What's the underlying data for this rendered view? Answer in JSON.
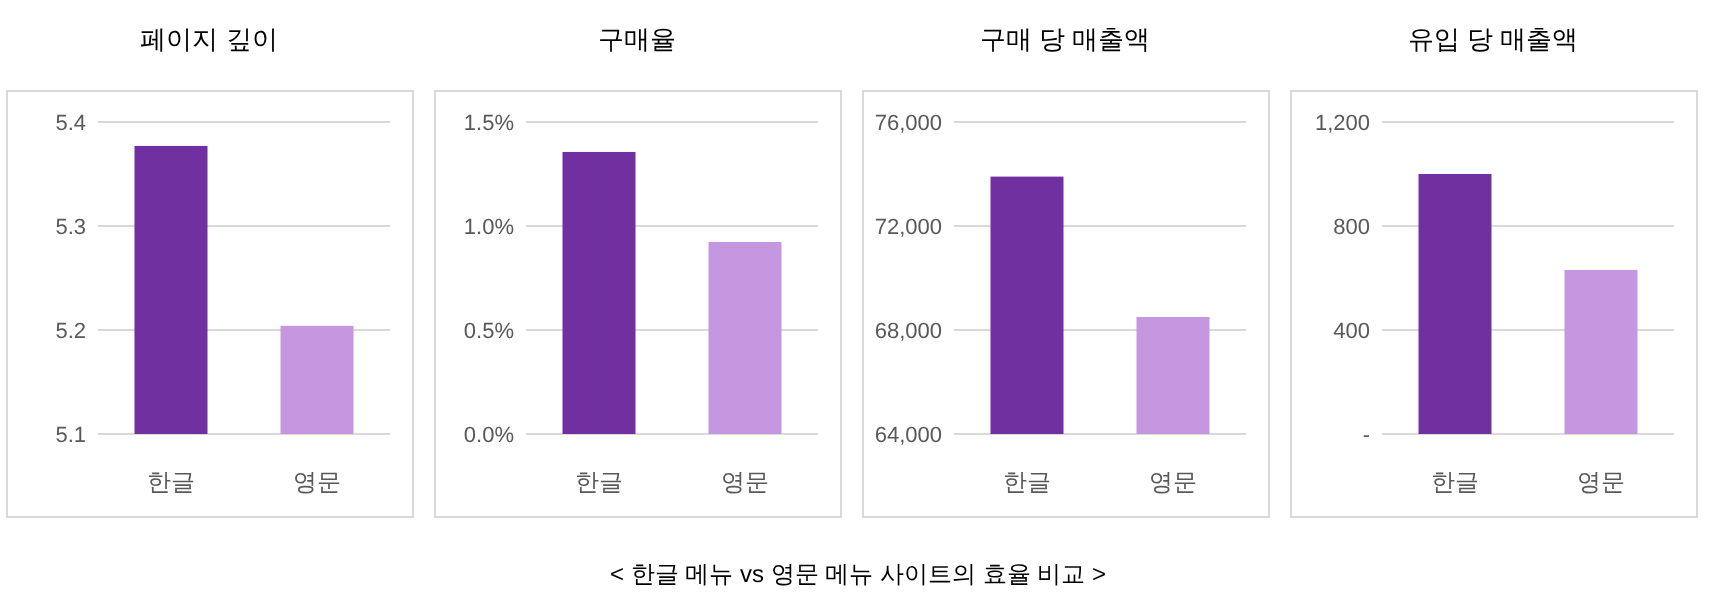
{
  "chart_data": [
    {
      "type": "bar",
      "title": "페이지 깊이",
      "categories": [
        "한글",
        "영문"
      ],
      "values": [
        5.377,
        5.204
      ],
      "colors": [
        "#7030a0",
        "#c497e0"
      ],
      "ylim": [
        5.1,
        5.4
      ],
      "yticks": [
        5.1,
        5.2,
        5.3,
        5.4
      ],
      "grid": "y",
      "annotations": [
        "< 한글 메뉴 vs 영문 메뉴 사이트의 효율 비교 >"
      ]
    },
    {
      "type": "bar",
      "title": "구매율",
      "categories": [
        "한글",
        "영문"
      ],
      "values": [
        1.356,
        0.923
      ],
      "colors": [
        "#7030a0",
        "#c497e0"
      ],
      "ylim": [
        0,
        1.5
      ],
      "yticks": [
        {
          "value": 0,
          "label": "0.0%"
        },
        {
          "value": 0.5,
          "label": "0.5%"
        },
        {
          "value": 1.0,
          "label": "1.0%"
        },
        {
          "value": 1.5,
          "label": "1.5%"
        }
      ],
      "grid": "y"
    },
    {
      "type": "bar",
      "title": "구매 당 매출액",
      "categories": [
        "한글",
        "영문"
      ],
      "values": [
        73900,
        68500
      ],
      "colors": [
        "#7030a0",
        "#c497e0"
      ],
      "ylim": [
        64000,
        76000
      ],
      "yticks": [
        {
          "value": 64000,
          "label": "64,000"
        },
        {
          "value": 68000,
          "label": "68,000"
        },
        {
          "value": 72000,
          "label": "72,000"
        },
        {
          "value": 76000,
          "label": "76,000"
        }
      ],
      "grid": "y"
    },
    {
      "type": "bar",
      "title": "유입 당 매출액",
      "categories": [
        "한글",
        "영문"
      ],
      "values": [
        1000,
        631
      ],
      "colors": [
        "#7030a0",
        "#c497e0"
      ],
      "ylim": [
        0,
        1200
      ],
      "yticks": [
        {
          "value": 0,
          "label": "-"
        },
        {
          "value": 400,
          "label": "400"
        },
        {
          "value": 800,
          "label": "800"
        },
        {
          "value": 1200,
          "label": "1,200"
        }
      ],
      "grid": "y"
    }
  ]
}
